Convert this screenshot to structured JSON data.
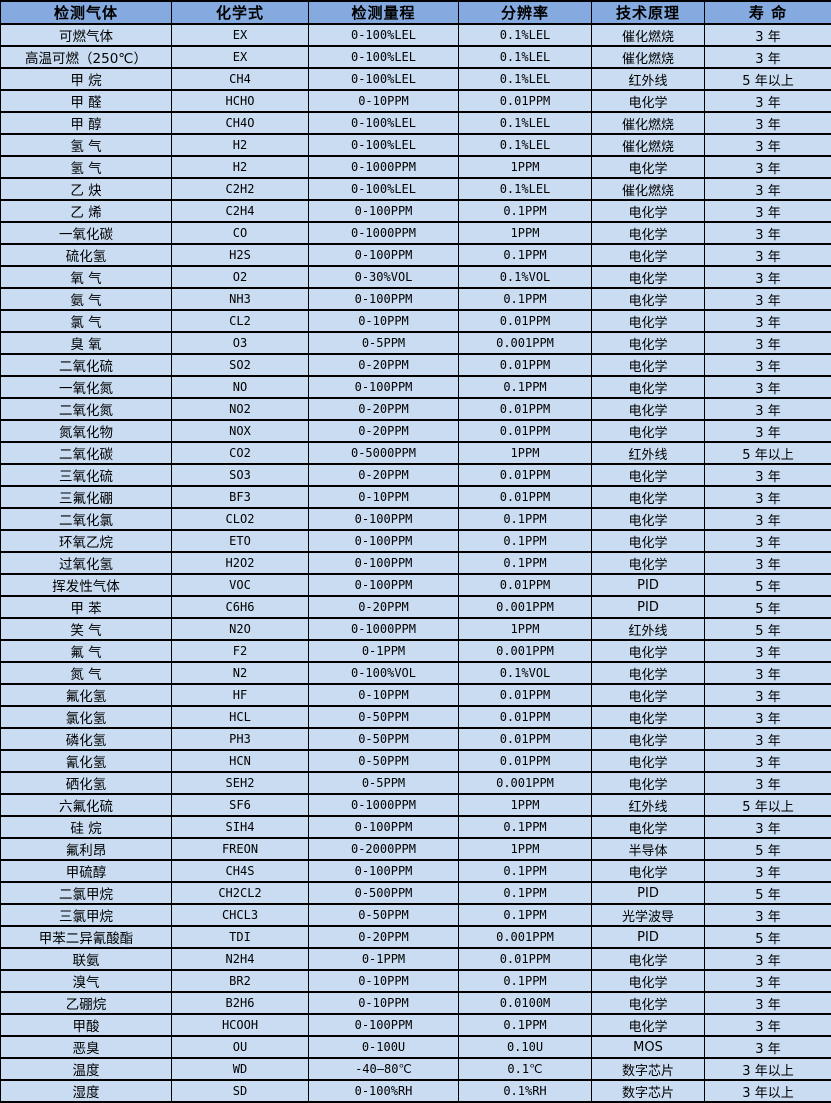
{
  "colors": {
    "header_bg": "#84aadf",
    "row_bg": "#c9dcf2",
    "border": "#000000"
  },
  "table": {
    "columns": [
      {
        "key": "gas",
        "label": "检测气体"
      },
      {
        "key": "formula",
        "label": "化学式"
      },
      {
        "key": "range",
        "label": "检测量程"
      },
      {
        "key": "resolution",
        "label": "分辨率"
      },
      {
        "key": "principle",
        "label": "技术原理"
      },
      {
        "key": "lifespan",
        "label": "寿 命"
      }
    ],
    "rows": [
      [
        "可燃气体",
        "EX",
        "0-100%LEL",
        "0.1%LEL",
        "催化燃烧",
        "3 年"
      ],
      [
        "高温可燃（250℃）",
        "EX",
        "0-100%LEL",
        "0.1%LEL",
        "催化燃烧",
        "3 年"
      ],
      [
        "甲 烷",
        "CH4",
        "0-100%LEL",
        "0.1%LEL",
        "红外线",
        "5 年以上"
      ],
      [
        "甲 醛",
        "HCHO",
        "0-10PPM",
        "0.01PPM",
        "电化学",
        "3 年"
      ],
      [
        "甲 醇",
        "CH4O",
        "0-100%LEL",
        "0.1%LEL",
        "催化燃烧",
        "3 年"
      ],
      [
        "氢 气",
        "H2",
        "0-100%LEL",
        "0.1%LEL",
        "催化燃烧",
        "3 年"
      ],
      [
        "氢 气",
        "H2",
        "0-1000PPM",
        "1PPM",
        "电化学",
        "3 年"
      ],
      [
        "乙 炔",
        "C2H2",
        "0-100%LEL",
        "0.1%LEL",
        "催化燃烧",
        "3 年"
      ],
      [
        "乙 烯",
        "C2H4",
        "0-100PPM",
        "0.1PPM",
        "电化学",
        "3 年"
      ],
      [
        "一氧化碳",
        "CO",
        "0-1000PPM",
        "1PPM",
        "电化学",
        "3 年"
      ],
      [
        "硫化氢",
        "H2S",
        "0-100PPM",
        "0.1PPM",
        "电化学",
        "3 年"
      ],
      [
        "氧 气",
        "O2",
        "0-30%VOL",
        "0.1%VOL",
        "电化学",
        "3 年"
      ],
      [
        "氨 气",
        "NH3",
        "0-100PPM",
        "0.1PPM",
        "电化学",
        "3 年"
      ],
      [
        "氯 气",
        "CL2",
        "0-10PPM",
        "0.01PPM",
        "电化学",
        "3 年"
      ],
      [
        "臭 氧",
        "O3",
        "0-5PPM",
        "0.001PPM",
        "电化学",
        "3 年"
      ],
      [
        "二氧化硫",
        "SO2",
        "0-20PPM",
        "0.01PPM",
        "电化学",
        "3 年"
      ],
      [
        "一氧化氮",
        "NO",
        "0-100PPM",
        "0.1PPM",
        "电化学",
        "3 年"
      ],
      [
        "二氧化氮",
        "NO2",
        "0-20PPM",
        "0.01PPM",
        "电化学",
        "3 年"
      ],
      [
        "氮氧化物",
        "NOX",
        "0-20PPM",
        "0.01PPM",
        "电化学",
        "3 年"
      ],
      [
        "二氧化碳",
        "CO2",
        "0-5000PPM",
        "1PPM",
        "红外线",
        "5 年以上"
      ],
      [
        "三氧化硫",
        "SO3",
        "0-20PPM",
        "0.01PPM",
        "电化学",
        "3 年"
      ],
      [
        "三氟化硼",
        "BF3",
        "0-10PPM",
        "0.01PPM",
        "电化学",
        "3 年"
      ],
      [
        "二氧化氯",
        "CLO2",
        "0-100PPM",
        "0.1PPM",
        "电化学",
        "3 年"
      ],
      [
        "环氧乙烷",
        "ETO",
        "0-100PPM",
        "0.1PPM",
        "电化学",
        "3 年"
      ],
      [
        "过氧化氢",
        "H2O2",
        "0-100PPM",
        "0.1PPM",
        "电化学",
        "3 年"
      ],
      [
        "挥发性气体",
        "VOC",
        "0-100PPM",
        "0.01PPM",
        "PID",
        "5 年"
      ],
      [
        "甲 苯",
        "C6H6",
        "0-20PPM",
        "0.001PPM",
        "PID",
        "5 年"
      ],
      [
        "笑 气",
        "N2O",
        "0-1000PPM",
        "1PPM",
        "红外线",
        "5 年"
      ],
      [
        "氟 气",
        "F2",
        "0-1PPM",
        "0.001PPM",
        "电化学",
        "3 年"
      ],
      [
        "氮 气",
        "N2",
        "0-100%VOL",
        "0.1%VOL",
        "电化学",
        "3 年"
      ],
      [
        "氟化氢",
        "HF",
        "0-10PPM",
        "0.01PPM",
        "电化学",
        "3 年"
      ],
      [
        "氯化氢",
        "HCL",
        "0-50PPM",
        "0.01PPM",
        "电化学",
        "3 年"
      ],
      [
        "磷化氢",
        "PH3",
        "0-50PPM",
        "0.01PPM",
        "电化学",
        "3 年"
      ],
      [
        "氰化氢",
        "HCN",
        "0-50PPM",
        "0.01PPM",
        "电化学",
        "3 年"
      ],
      [
        "硒化氢",
        "SEH2",
        "0-5PPM",
        "0.001PPM",
        "电化学",
        "3 年"
      ],
      [
        "六氟化硫",
        "SF6",
        "0-1000PPM",
        "1PPM",
        "红外线",
        "5 年以上"
      ],
      [
        "硅 烷",
        "SIH4",
        "0-100PPM",
        "0.1PPM",
        "电化学",
        "3 年"
      ],
      [
        "氟利昂",
        "FREON",
        "0-2000PPM",
        "1PPM",
        "半导体",
        "5 年"
      ],
      [
        "甲硫醇",
        "CH4S",
        "0-100PPM",
        "0.1PPM",
        "电化学",
        "3 年"
      ],
      [
        "二氯甲烷",
        "CH2CL2",
        "0-500PPM",
        "0.1PPM",
        "PID",
        "5 年"
      ],
      [
        "三氯甲烷",
        "CHCL3",
        "0-50PPM",
        "0.1PPM",
        "光学波导",
        "3 年"
      ],
      [
        "甲苯二异氰酸酯",
        "TDI",
        "0-20PPM",
        "0.001PPM",
        "PID",
        "5 年"
      ],
      [
        "联氨",
        "N2H4",
        "0-1PPM",
        "0.01PPM",
        "电化学",
        "3 年"
      ],
      [
        "溴气",
        "BR2",
        "0-10PPM",
        "0.1PPM",
        "电化学",
        "3 年"
      ],
      [
        "乙硼烷",
        "B2H6",
        "0-10PPM",
        "0.0100M",
        "电化学",
        "3 年"
      ],
      [
        "甲酸",
        "HCOOH",
        "0-100PPM",
        "0.1PPM",
        "电化学",
        "3 年"
      ],
      [
        "恶臭",
        "OU",
        "0-100U",
        "0.10U",
        "MOS",
        "3 年"
      ],
      [
        "温度",
        "WD",
        "-40—80℃",
        "0.1℃",
        "数字芯片",
        "3 年以上"
      ],
      [
        "湿度",
        "SD",
        "0-100%RH",
        "0.1%RH",
        "数字芯片",
        "3 年以上"
      ]
    ]
  }
}
